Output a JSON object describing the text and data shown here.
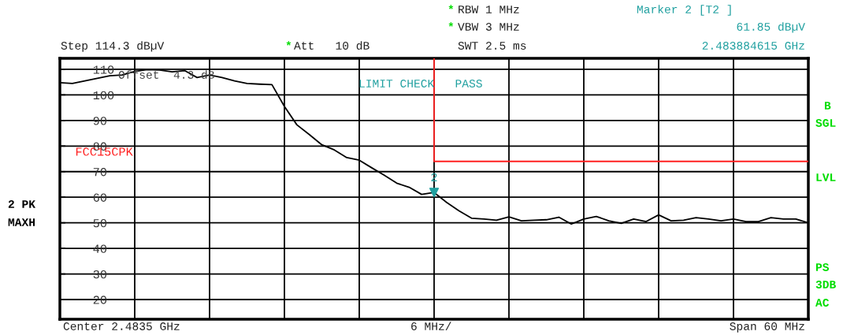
{
  "chart_data": {
    "type": "line",
    "annotations": [
      "Step 114.3 dBµV",
      "*",
      "Att   10 dB",
      "*",
      "RBW 1 MHz",
      "*",
      "VBW 3 MHz",
      "SWT 2.5 ms",
      "Marker 2 [T2 ]",
      "61.85 dBµV",
      "2.483884615 GHz",
      "LIMIT CHECK   PASS",
      "Offset  4.3 dB",
      "2 PK",
      "MAXH",
      "B",
      "SGL",
      "LVL",
      "PS",
      "3DB",
      "AC",
      "Center 2.4835 GHz",
      "6 MHz/",
      "Span 60 MHz"
    ],
    "categories": [
      null,
      null,
      null,
      null,
      null,
      null,
      null,
      null,
      null,
      null,
      null,
      null,
      null,
      null,
      null,
      null,
      null,
      null,
      null,
      null,
      null,
      null,
      null,
      null,
      null,
      null,
      null,
      null,
      null,
      null,
      null,
      null,
      null,
      null,
      null,
      null,
      null,
      null,
      null,
      null,
      null,
      null,
      null,
      null,
      null,
      null,
      null,
      null,
      null,
      null,
      null,
      null,
      null,
      null,
      null,
      null,
      null,
      null,
      null,
      null,
      null
    ],
    "ylim": [
      12.3,
      114.3
    ],
    "yticks": [
      20,
      30,
      40,
      50,
      60,
      70,
      80,
      90,
      100,
      110
    ],
    "grid": true,
    "series": [
      {
        "color": "#000000",
        "values": [
          104.8,
          104.5,
          105.5,
          106.5,
          107.5,
          107.8,
          109.2,
          109.9,
          109.7,
          109.0,
          109.5,
          106.8,
          107.8,
          106.8,
          105.5,
          104.5,
          104.2,
          104.0,
          95.5,
          88.3,
          84.5,
          80.5,
          78.5,
          75.5,
          74.5,
          71.5,
          68.6,
          65.5,
          63.9,
          61.1,
          61.85,
          58.0,
          54.7,
          51.8,
          51.5,
          51.0,
          52.3,
          50.8,
          51.0,
          51.2,
          52.2,
          49.5,
          51.5,
          52.5,
          50.8,
          49.8,
          51.5,
          50.5,
          53.1,
          50.8,
          51.0,
          52.0,
          51.5,
          50.8,
          51.5,
          50.5,
          50.5,
          52.0,
          51.5,
          51.5,
          50.0
        ]
      },
      {
        "type": "step",
        "name": "FCC15CPK",
        "color": "#ff2020",
        "values": [
          null,
          null,
          null,
          null,
          null,
          null,
          null,
          null,
          null,
          null,
          null,
          null,
          null,
          null,
          null,
          null,
          null,
          null,
          null,
          null,
          null,
          null,
          null,
          null,
          null,
          null,
          null,
          null,
          null,
          null,
          74,
          74,
          74,
          74,
          74,
          74,
          74,
          74,
          74,
          74,
          74,
          74,
          74,
          74,
          74,
          74,
          74,
          74,
          74,
          74,
          74,
          74,
          74,
          74,
          74,
          74,
          74,
          74,
          74,
          74,
          74
        ]
      },
      {
        "type": "scatter",
        "name": "2",
        "color": "#20a0a0",
        "marker": "triangle",
        "values": [
          null,
          null,
          null,
          null,
          null,
          null,
          null,
          null,
          null,
          null,
          null,
          null,
          null,
          null,
          null,
          null,
          null,
          null,
          null,
          null,
          null,
          null,
          null,
          null,
          null,
          null,
          null,
          null,
          null,
          null,
          61.85,
          null,
          null,
          null,
          null,
          null,
          null,
          null,
          null,
          null,
          null,
          null,
          null,
          null,
          null,
          null,
          null,
          null,
          null,
          null,
          null,
          null,
          null,
          null,
          null,
          null,
          null,
          null,
          null,
          null,
          null
        ]
      }
    ]
  }
}
